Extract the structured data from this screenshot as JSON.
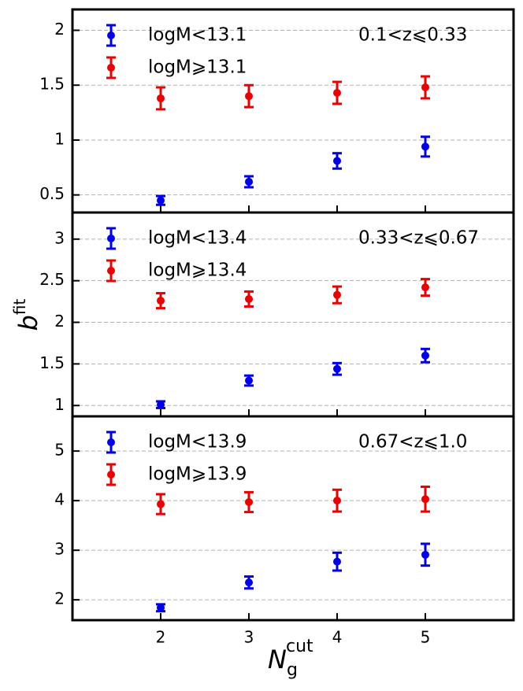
{
  "xlabel": "N",
  "xlabel_sub": "g",
  "xlabel_sup": "cut",
  "ylabel": "b",
  "ylabel_sup": "fit",
  "chart_data": [
    {
      "type": "errorbar",
      "annotation": "0.1<z⩽0.33",
      "x": [
        2,
        3,
        4,
        5
      ],
      "xlim": [
        1,
        6
      ],
      "xticks": [
        2,
        3,
        4,
        5
      ],
      "ylim": [
        0.34,
        2.19
      ],
      "yticks": [
        0.5,
        1.0,
        1.5,
        2.0
      ],
      "grid": true,
      "series": [
        {
          "name": "logM<13.1",
          "color": "#0000ee",
          "values": [
            0.45,
            0.62,
            0.81,
            0.94
          ],
          "errors": [
            0.04,
            0.05,
            0.07,
            0.09
          ]
        },
        {
          "name": "logM⩾13.1",
          "color": "#ee0000",
          "values": [
            1.38,
            1.4,
            1.43,
            1.48
          ],
          "errors": [
            0.1,
            0.1,
            0.1,
            0.1
          ]
        }
      ]
    },
    {
      "type": "errorbar",
      "annotation": "0.33<z⩽0.67",
      "x": [
        2,
        3,
        4,
        5
      ],
      "xlim": [
        1,
        6
      ],
      "xticks": [
        2,
        3,
        4,
        5
      ],
      "ylim": [
        0.87,
        3.32
      ],
      "yticks": [
        1.0,
        1.5,
        2.0,
        2.5,
        3.0
      ],
      "grid": true,
      "series": [
        {
          "name": "logM<13.4",
          "color": "#0000ee",
          "values": [
            1.01,
            1.3,
            1.44,
            1.6
          ],
          "errors": [
            0.04,
            0.06,
            0.07,
            0.08
          ]
        },
        {
          "name": "logM⩾13.4",
          "color": "#ee0000",
          "values": [
            2.26,
            2.28,
            2.33,
            2.42
          ],
          "errors": [
            0.09,
            0.09,
            0.1,
            0.1
          ]
        }
      ]
    },
    {
      "type": "errorbar",
      "annotation": "0.67<z⩽1.0",
      "x": [
        2,
        3,
        4,
        5
      ],
      "xlim": [
        1,
        6
      ],
      "xticks": [
        2,
        3,
        4,
        5
      ],
      "ylim": [
        1.59,
        5.7
      ],
      "yticks": [
        2,
        3,
        4,
        5
      ],
      "grid": true,
      "series": [
        {
          "name": "logM<13.9",
          "color": "#0000ee",
          "values": [
            1.84,
            2.35,
            2.77,
            2.91
          ],
          "errors": [
            0.07,
            0.12,
            0.18,
            0.22
          ]
        },
        {
          "name": "logM⩾13.9",
          "color": "#ee0000",
          "values": [
            3.93,
            3.97,
            4.0,
            4.03
          ],
          "errors": [
            0.2,
            0.2,
            0.22,
            0.25
          ]
        }
      ]
    }
  ]
}
